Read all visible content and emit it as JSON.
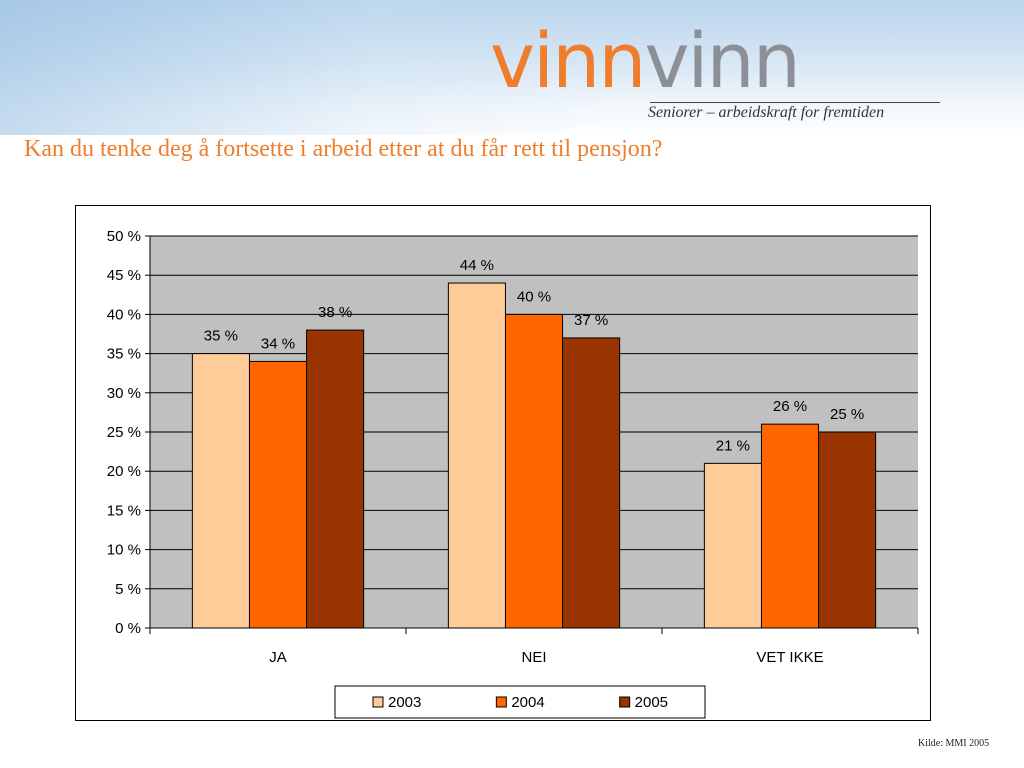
{
  "header": {
    "logo_part1": "vinn",
    "logo_part2": "vinn",
    "tagline": "Seniorer – arbeidskraft for fremtiden",
    "question": "Kan du tenke deg å fortsette i arbeid etter at du får rett til pensjon?"
  },
  "footer": {
    "source": "Kilde: MMI 2005"
  },
  "chart_data": {
    "type": "bar",
    "title": "Kan du tenke deg å fortsette i arbeid etter at du får rett til pensjon?",
    "categories": [
      "JA",
      "NEI",
      "VET IKKE"
    ],
    "series": [
      {
        "name": "2003",
        "values": [
          35,
          44,
          21
        ],
        "labels": [
          "35 %",
          "44 %",
          "21 %"
        ],
        "color": "#ffcc99"
      },
      {
        "name": "2004",
        "values": [
          34,
          40,
          26
        ],
        "labels": [
          "34 %",
          "40 %",
          "26 %"
        ],
        "color": "#ff6600"
      },
      {
        "name": "2005",
        "values": [
          38,
          37,
          25
        ],
        "labels": [
          "38 %",
          "37 %",
          "25 %"
        ],
        "color": "#993300"
      }
    ],
    "ylim": [
      0,
      50
    ],
    "yticks": [
      0,
      5,
      10,
      15,
      20,
      25,
      30,
      35,
      40,
      45,
      50
    ],
    "ytick_labels": [
      "0 %",
      "5 %",
      "10 %",
      "15 %",
      "20 %",
      "25 %",
      "30 %",
      "35 %",
      "40 %",
      "45 %",
      "50 %"
    ],
    "grid": true,
    "plot_background": "#c0c0c0",
    "legend_position": "bottom"
  }
}
